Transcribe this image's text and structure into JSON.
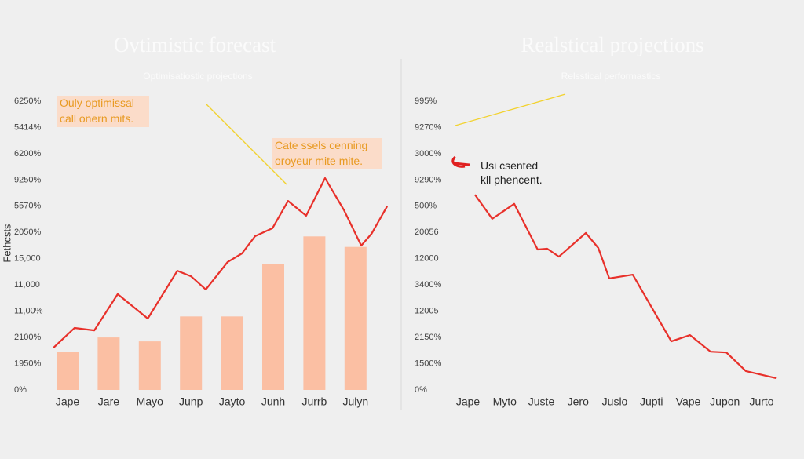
{
  "chart_data": [
    {
      "type": "bar",
      "title": "Ovtimistic forecast",
      "subtitle": "Optimisatiostic projections",
      "ylabel": "Fethcsts",
      "categories": [
        "Jape",
        "Jare",
        "Mayo",
        "Junp",
        "Jayto",
        "Junh",
        "Jurrb",
        "Julyn"
      ],
      "bars": {
        "color": "#fbbfa3",
        "values": [
          1.46,
          2.0,
          1.85,
          2.8,
          2.8,
          4.8,
          5.85,
          5.45
        ]
      },
      "line": {
        "color": "#e8302a",
        "x": [
          -0.34,
          0.17,
          0.65,
          1.22,
          1.95,
          2.67,
          3.0,
          3.36,
          3.89,
          4.24,
          4.56,
          4.98,
          5.36,
          5.8,
          6.26,
          6.72,
          7.14,
          7.39,
          7.77
        ],
        "values": [
          1.61,
          2.36,
          2.27,
          3.65,
          2.72,
          4.54,
          4.33,
          3.83,
          4.87,
          5.2,
          5.86,
          6.16,
          7.2,
          6.64,
          8.07,
          6.85,
          5.5,
          5.95,
          7.0
        ]
      },
      "ylim": [
        0,
        11
      ],
      "yticks": [
        {
          "value": 0,
          "label": "0%"
        },
        {
          "value": 1,
          "label": "1950%"
        },
        {
          "value": 2,
          "label": "2100%"
        },
        {
          "value": 3,
          "label": "11,00%"
        },
        {
          "value": 4,
          "label": "11,000"
        },
        {
          "value": 5,
          "label": "15,000"
        },
        {
          "value": 6,
          "label": "2050%"
        },
        {
          "value": 7,
          "label": "5570%"
        },
        {
          "value": 8,
          "label": "9250%"
        },
        {
          "value": 9,
          "label": "6200%"
        },
        {
          "value": 10,
          "label": "5414%"
        },
        {
          "value": 11,
          "label": "6250%"
        }
      ],
      "annotations": [
        {
          "lines": [
            "Ouly optimissal",
            "call onern mits."
          ]
        },
        {
          "lines": [
            "Cate ssels cenning",
            "oroyeur mite mite."
          ]
        }
      ]
    },
    {
      "type": "line",
      "title": "Realstical projections",
      "subtitle": "Relsstical performastics",
      "categories": [
        "Jape",
        "Myto",
        "Juste",
        "Jero",
        "Juslo",
        "Jupti",
        "Vape",
        "Jupon",
        "Jurto"
      ],
      "line": {
        "color": "#e8302a",
        "x": [
          0.19,
          0.66,
          1.26,
          1.9,
          2.16,
          2.48,
          3.21,
          3.55,
          3.85,
          4.49,
          5.54,
          6.05,
          6.61,
          7.04,
          7.57,
          8.39
        ],
        "values": [
          7.44,
          6.52,
          7.09,
          5.35,
          5.38,
          5.08,
          5.98,
          5.41,
          4.25,
          4.39,
          1.85,
          2.09,
          1.46,
          1.43,
          0.72,
          0.45
        ]
      },
      "ylim": [
        0,
        11
      ],
      "yticks": [
        {
          "value": 0,
          "label": "0%"
        },
        {
          "value": 1,
          "label": "1500%"
        },
        {
          "value": 2,
          "label": "2150%"
        },
        {
          "value": 3,
          "label": "12005"
        },
        {
          "value": 4,
          "label": "3400%"
        },
        {
          "value": 5,
          "label": "12000"
        },
        {
          "value": 6,
          "label": "20056"
        },
        {
          "value": 7,
          "label": "500%"
        },
        {
          "value": 8,
          "label": "9290%"
        },
        {
          "value": 9,
          "label": "3000%"
        },
        {
          "value": 10,
          "label": "9270%"
        },
        {
          "value": 11,
          "label": "995%"
        }
      ],
      "annotations": [
        {
          "lines": [
            "Usi csented",
            "kll phencent."
          ]
        }
      ]
    }
  ]
}
